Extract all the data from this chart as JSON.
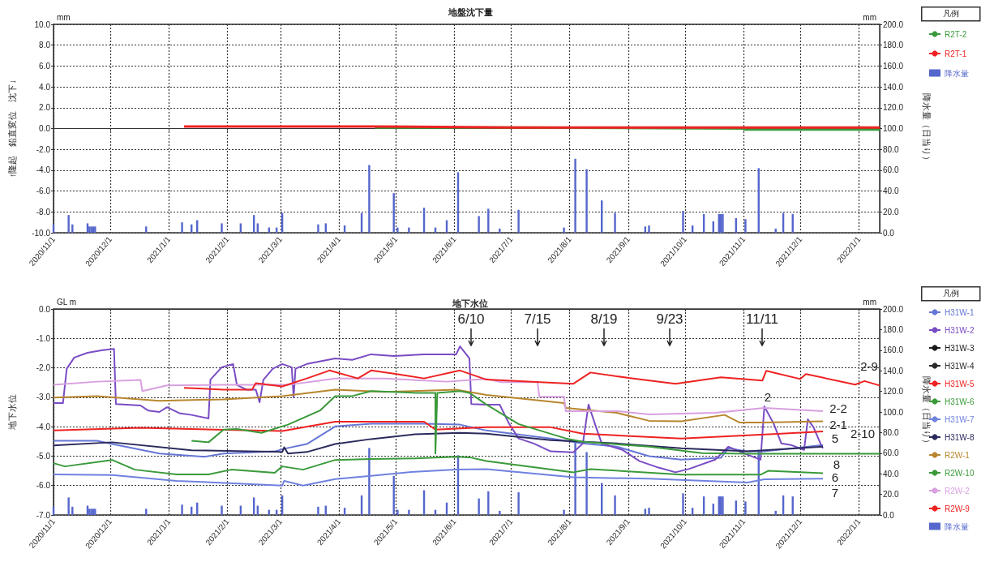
{
  "chart_data": [
    {
      "type": "line",
      "title": "地盤沈下量",
      "ylabel": "↑隆起　鉛直変位　沈下↓",
      "y2label": "降水量（日当り）",
      "legend_title": "凡例",
      "legend": "right",
      "grid": true,
      "annotations": [
        "mm",
        "mm"
      ],
      "xlim": [
        "2020-11-01",
        "2022-01-12"
      ],
      "xticks": [
        {
          "value": "2020-11-01",
          "label": "2020/11/1"
        },
        {
          "value": "2020-12-01",
          "label": "2020/12/1"
        },
        {
          "value": "2021-01-01",
          "label": "2021/1/1"
        },
        {
          "value": "2021-02-01",
          "label": "2021/2/1"
        },
        {
          "value": "2021-03-01",
          "label": "2021/3/1"
        },
        {
          "value": "2021-04-01",
          "label": "2021/4/1"
        },
        {
          "value": "2021-05-01",
          "label": "2021/5/1"
        },
        {
          "value": "2021-06-01",
          "label": "2021/6/1"
        },
        {
          "value": "2021-07-01",
          "label": "2021/7/1"
        },
        {
          "value": "2021-08-01",
          "label": "2021/8/1"
        },
        {
          "value": "2021-09-01",
          "label": "2021/9/1"
        },
        {
          "value": "2021-10-01",
          "label": "2021/10/1"
        },
        {
          "value": "2021-11-01",
          "label": "2021/11/1"
        },
        {
          "value": "2021-12-01",
          "label": "2021/12/1"
        },
        {
          "value": "2022-01-01",
          "label": "2022/1/1"
        }
      ],
      "ylim": [
        -10,
        10
      ],
      "yticks": [
        {
          "value": -10,
          "label": "-10.0"
        },
        {
          "value": -8,
          "label": "-8.0"
        },
        {
          "value": -6,
          "label": "-6.0"
        },
        {
          "value": -4,
          "label": "-4.0"
        },
        {
          "value": -2,
          "label": "-2.0"
        },
        {
          "value": 0,
          "label": "0.0"
        },
        {
          "value": 2,
          "label": "2.0"
        },
        {
          "value": 4,
          "label": "4.0"
        },
        {
          "value": 6,
          "label": "6.0"
        },
        {
          "value": 8,
          "label": "8.0"
        },
        {
          "value": 10,
          "label": "10.0"
        }
      ],
      "y2lim": [
        0,
        200
      ],
      "y2ticks": [
        {
          "value": 0,
          "label": "0.0"
        },
        {
          "value": 20,
          "label": "20.0"
        },
        {
          "value": 40,
          "label": "40.0"
        },
        {
          "value": 60,
          "label": "60.0"
        },
        {
          "value": 80,
          "label": "80.0"
        },
        {
          "value": 100,
          "label": "100.0"
        },
        {
          "value": 120,
          "label": "120.0"
        },
        {
          "value": 140,
          "label": "140.0"
        },
        {
          "value": 160,
          "label": "160.0"
        },
        {
          "value": 180,
          "label": "180.0"
        },
        {
          "value": 200,
          "label": "200.0"
        }
      ],
      "series": [
        {
          "name": "R2T-2",
          "color": "#3a9a3a",
          "x": [
            "2021-04-20",
            "2021-07-01",
            "2021-11-01",
            "2021-11-02",
            "2022-01-12"
          ],
          "values": [
            0.1,
            0.1,
            0.0,
            -0.1,
            -0.1
          ]
        },
        {
          "name": "R2T-1",
          "color": "#ee2222",
          "x": [
            "2021-01-09",
            "2021-04-20",
            "2021-07-01",
            "2021-10-01",
            "2022-01-12"
          ],
          "values": [
            0.2,
            0.2,
            0.1,
            0.1,
            0.1
          ]
        },
        {
          "name": "降水量",
          "type": "bar",
          "axis": "y2",
          "color": "#5566cc",
          "x": [
            "2020-11-01",
            "2020-11-09",
            "2020-11-11",
            "2020-11-19",
            "2020-11-20",
            "2020-11-21",
            "2020-11-22",
            "2020-11-23",
            "2020-12-20",
            "2021-01-08",
            "2021-01-13",
            "2021-01-16",
            "2021-01-29",
            "2021-02-08",
            "2021-02-15",
            "2021-02-17",
            "2021-02-23",
            "2021-02-27",
            "2021-03-02",
            "2021-03-21",
            "2021-03-25",
            "2021-04-04",
            "2021-04-13",
            "2021-04-17",
            "2021-04-30",
            "2021-05-02",
            "2021-05-08",
            "2021-05-16",
            "2021-05-22",
            "2021-05-28",
            "2021-06-03",
            "2021-06-14",
            "2021-06-19",
            "2021-06-25",
            "2021-07-05",
            "2021-07-29",
            "2021-08-04",
            "2021-08-10",
            "2021-08-18",
            "2021-08-25",
            "2021-09-10",
            "2021-09-12",
            "2021-09-30",
            "2021-10-05",
            "2021-10-11",
            "2021-10-16",
            "2021-10-19",
            "2021-10-20",
            "2021-10-21",
            "2021-10-28",
            "2021-11-02",
            "2021-11-09",
            "2021-11-18",
            "2021-11-22",
            "2021-11-27"
          ],
          "values": [
            8,
            17,
            8,
            9,
            6,
            6,
            6,
            6,
            6,
            10,
            8,
            12,
            9,
            9,
            17,
            9,
            5,
            5,
            19,
            8,
            9,
            7,
            19,
            65,
            38,
            5,
            5,
            24,
            5,
            12,
            58,
            16,
            23,
            4,
            22,
            5,
            71,
            61,
            31,
            19,
            6,
            7,
            21,
            7,
            18,
            11,
            18,
            18,
            18,
            14,
            13,
            62,
            4,
            19,
            18
          ]
        }
      ]
    },
    {
      "type": "line",
      "title": "地下水位",
      "ylabel": "地下水位",
      "y2label": "降水量（日当り）",
      "legend_title": "凡例",
      "legend": "right",
      "grid": true,
      "annotations": [
        "GL m",
        "mm",
        "6/10",
        "7/15",
        "8/19",
        "9/23",
        "11/11",
        "2-9",
        "2",
        "2-2",
        "2-1",
        "5",
        "2-10",
        "8",
        "6",
        "7"
      ],
      "xlim": [
        "2020-11-01",
        "2022-01-12"
      ],
      "xticks": [
        {
          "value": "2020-11-01",
          "label": "2020/11/1"
        },
        {
          "value": "2020-12-01",
          "label": "2020/12/1"
        },
        {
          "value": "2021-01-01",
          "label": "2021/1/1"
        },
        {
          "value": "2021-02-01",
          "label": "2021/2/1"
        },
        {
          "value": "2021-03-01",
          "label": "2021/3/1"
        },
        {
          "value": "2021-04-01",
          "label": "2021/4/1"
        },
        {
          "value": "2021-05-01",
          "label": "2021/5/1"
        },
        {
          "value": "2021-06-01",
          "label": "2021/6/1"
        },
        {
          "value": "2021-07-01",
          "label": "2021/7/1"
        },
        {
          "value": "2021-08-01",
          "label": "2021/8/1"
        },
        {
          "value": "2021-09-01",
          "label": "2021/9/1"
        },
        {
          "value": "2021-10-01",
          "label": "2021/10/1"
        },
        {
          "value": "2021-11-01",
          "label": "2021/11/1"
        },
        {
          "value": "2021-12-01",
          "label": "2021/12/1"
        },
        {
          "value": "2022-01-01",
          "label": "2022/1/1"
        }
      ],
      "ylim": [
        -7,
        0
      ],
      "yticks": [
        {
          "value": -7,
          "label": "-7.0"
        },
        {
          "value": -6,
          "label": "-6.0"
        },
        {
          "value": -5,
          "label": "-5.0"
        },
        {
          "value": -4,
          "label": "-4.0"
        },
        {
          "value": -3,
          "label": "-3.0"
        },
        {
          "value": -2,
          "label": "-2.0"
        },
        {
          "value": -1,
          "label": "-1.0"
        },
        {
          "value": 0,
          "label": "0.0"
        }
      ],
      "y2lim": [
        0,
        200
      ],
      "y2ticks": [
        {
          "value": 0,
          "label": "0.0"
        },
        {
          "value": 20,
          "label": "20.0"
        },
        {
          "value": 40,
          "label": "40.0"
        },
        {
          "value": 60,
          "label": "60.0"
        },
        {
          "value": 80,
          "label": "80.0"
        },
        {
          "value": 100,
          "label": "100.0"
        },
        {
          "value": 120,
          "label": "120.0"
        },
        {
          "value": 140,
          "label": "140.0"
        },
        {
          "value": 160,
          "label": "160.0"
        },
        {
          "value": 180,
          "label": "180.0"
        },
        {
          "value": 200,
          "label": "200.0"
        }
      ],
      "series": [
        {
          "name": "H31W-1",
          "color": "#6677d6",
          "x": [
            "2020-11-01",
            "2020-11-24",
            "2020-12-02",
            "2020-12-27",
            "2021-01-20",
            "2021-01-30",
            "2021-02-26",
            "2021-03-03",
            "2021-03-15",
            "2021-03-30",
            "2021-04-18",
            "2021-05-16",
            "2021-06-04",
            "2021-06-18",
            "2021-07-22",
            "2021-08-08",
            "2021-08-26",
            "2021-09-12",
            "2021-09-29",
            "2021-10-20",
            "2021-10-24",
            "2021-11-03",
            "2021-11-12",
            "2021-12-13"
          ],
          "values": [
            -4.48,
            -4.48,
            -4.59,
            -4.91,
            -5.02,
            -4.91,
            -4.84,
            -4.75,
            -4.59,
            -3.99,
            -3.9,
            -3.9,
            -3.93,
            -4.13,
            -4.4,
            -4.57,
            -4.68,
            -5.0,
            -5.12,
            -5.06,
            -4.73,
            -4.84,
            -4.84,
            -4.62
          ]
        },
        {
          "name": "H31W-2",
          "color": "#7a4cc4",
          "x": [
            "2020-11-01",
            "2020-11-06",
            "2020-11-08",
            "2020-11-12",
            "2020-11-19",
            "2020-11-27",
            "2020-12-03",
            "2020-12-04",
            "2020-12-17",
            "2020-12-21",
            "2020-12-27",
            "2020-12-31",
            "2021-01-07",
            "2021-01-13",
            "2021-01-22",
            "2021-01-23",
            "2021-01-29",
            "2021-02-04",
            "2021-02-06",
            "2021-02-11",
            "2021-02-16",
            "2021-02-18",
            "2021-02-20",
            "2021-02-25",
            "2021-03-02",
            "2021-03-07",
            "2021-03-08",
            "2021-03-09",
            "2021-03-15",
            "2021-03-30",
            "2021-04-08",
            "2021-04-18",
            "2021-04-30",
            "2021-05-16",
            "2021-06-02",
            "2021-06-04",
            "2021-06-09",
            "2021-06-10",
            "2021-06-18",
            "2021-06-25",
            "2021-06-30",
            "2021-07-05",
            "2021-07-13",
            "2021-07-22",
            "2021-08-03",
            "2021-08-08",
            "2021-08-11",
            "2021-08-15",
            "2021-08-18",
            "2021-08-29",
            "2021-09-07",
            "2021-09-17",
            "2021-09-26",
            "2021-10-03",
            "2021-10-17",
            "2021-10-24",
            "2021-11-03",
            "2021-11-10",
            "2021-11-12",
            "2021-11-17",
            "2021-11-21",
            "2021-11-26",
            "2021-12-03",
            "2021-12-05",
            "2021-12-08",
            "2021-12-12",
            "2021-12-13"
          ],
          "values": [
            -3.2,
            -3.2,
            -2.03,
            -1.65,
            -1.49,
            -1.4,
            -1.36,
            -3.23,
            -3.28,
            -3.45,
            -3.5,
            -3.34,
            -3.55,
            -3.6,
            -3.72,
            -2.4,
            -1.98,
            -1.87,
            -2.58,
            -2.74,
            -2.74,
            -3.17,
            -2.41,
            -2.03,
            -1.87,
            -1.98,
            -3.0,
            -2.03,
            -1.87,
            -1.68,
            -1.73,
            -1.54,
            -1.6,
            -1.54,
            -1.54,
            -1.27,
            -1.68,
            -3.23,
            -3.25,
            -3.25,
            -3.9,
            -4.4,
            -4.57,
            -4.84,
            -4.87,
            -4.57,
            -3.25,
            -4.02,
            -4.57,
            -4.79,
            -5.17,
            -5.39,
            -5.55,
            -5.44,
            -5.12,
            -4.68,
            -4.95,
            -5.12,
            -3.31,
            -3.91,
            -4.57,
            -4.62,
            -4.79,
            -3.75,
            -4.02,
            -4.62,
            -4.73
          ]
        },
        {
          "name": "H31W-3",
          "color": "#1a1a1a"
        },
        {
          "name": "H31W-4",
          "color": "#2a2a2a"
        },
        {
          "name": "H31W-5",
          "color": "#ee2222",
          "x": [
            "2020-11-01",
            "2020-12-17",
            "2021-03-02",
            "2021-03-30",
            "2021-04-18",
            "2021-05-16",
            "2021-05-22",
            "2021-06-18",
            "2021-07-22",
            "2021-08-08",
            "2021-09-29",
            "2021-11-21",
            "2021-12-13"
          ],
          "values": [
            -4.13,
            -4.04,
            -4.15,
            -3.83,
            -3.83,
            -3.83,
            -4.1,
            -4.02,
            -4.02,
            -4.24,
            -4.4,
            -4.24,
            -4.16
          ]
        },
        {
          "name": "H31W-6",
          "color": "#3a9a3a",
          "x": [
            "2020-11-01",
            "2020-11-07",
            "2020-12-02",
            "2020-12-14",
            "2021-01-05",
            "2021-01-22",
            "2021-02-03",
            "2021-02-26",
            "2021-03-02",
            "2021-03-13",
            "2021-03-30",
            "2021-04-18",
            "2021-05-11",
            "2021-06-02",
            "2021-06-09",
            "2021-06-18",
            "2021-08-03",
            "2021-08-12",
            "2021-09-29",
            "2021-11-10",
            "2021-11-14",
            "2021-12-13"
          ],
          "values": [
            -5.24,
            -5.35,
            -5.13,
            -5.46,
            -5.62,
            -5.62,
            -5.46,
            -5.57,
            -5.35,
            -5.46,
            -5.13,
            -5.1,
            -5.08,
            -5.02,
            -5.04,
            -5.17,
            -5.55,
            -5.44,
            -5.63,
            -5.63,
            -5.5,
            -5.58
          ]
        },
        {
          "name": "H31W-7",
          "color": "#6f82e0",
          "x": [
            "2020-11-01",
            "2020-12-02",
            "2021-01-05",
            "2021-03-02",
            "2021-03-03",
            "2021-03-13",
            "2021-03-30",
            "2021-04-18",
            "2021-05-11",
            "2021-06-02",
            "2021-06-18",
            "2021-08-03",
            "2021-09-12",
            "2021-11-03",
            "2021-11-12",
            "2021-12-13"
          ],
          "values": [
            -5.62,
            -5.64,
            -5.84,
            -6.0,
            -5.84,
            -6.0,
            -5.78,
            -5.67,
            -5.53,
            -5.46,
            -5.44,
            -5.72,
            -5.77,
            -5.9,
            -5.79,
            -5.77
          ]
        },
        {
          "name": "H31W-8",
          "color": "#2b2a5c",
          "x": [
            "2020-11-01",
            "2020-12-02",
            "2021-01-13",
            "2021-03-02",
            "2021-03-03",
            "2021-03-05",
            "2021-03-15",
            "2021-03-30",
            "2021-04-18",
            "2021-05-11",
            "2021-06-04",
            "2021-06-18",
            "2021-07-22",
            "2021-08-26",
            "2021-09-29",
            "2021-11-03",
            "2021-12-13"
          ],
          "values": [
            -4.64,
            -4.53,
            -4.8,
            -4.86,
            -4.7,
            -4.91,
            -4.86,
            -4.59,
            -4.42,
            -4.26,
            -4.21,
            -4.24,
            -4.46,
            -4.57,
            -4.73,
            -4.84,
            -4.68
          ]
        },
        {
          "name": "R2W-1",
          "color": "#b8862e",
          "x": [
            "2020-11-01",
            "2020-11-24",
            "2020-12-27",
            "2021-01-30",
            "2021-03-02",
            "2021-03-30",
            "2021-04-25",
            "2021-06-02",
            "2021-06-18",
            "2021-07-29",
            "2021-07-30",
            "2021-08-26",
            "2021-09-12",
            "2021-09-29",
            "2021-10-22",
            "2021-10-30",
            "2021-11-12",
            "2021-12-13"
          ],
          "values": [
            -3.01,
            -2.96,
            -3.12,
            -3.07,
            -2.96,
            -2.74,
            -2.82,
            -2.74,
            -2.92,
            -3.2,
            -3.36,
            -3.53,
            -3.8,
            -3.82,
            -3.6,
            -3.86,
            -3.86,
            -3.82
          ]
        },
        {
          "name": "R2W-10",
          "color": "#3a9a3a",
          "x": [
            "2021-01-13",
            "2021-01-22",
            "2021-01-30",
            "2021-02-06",
            "2021-02-19",
            "2021-03-05",
            "2021-03-22",
            "2021-03-30",
            "2021-04-08",
            "2021-04-18",
            "2021-05-11",
            "2021-05-22",
            "2021-05-22",
            "2021-05-23",
            "2021-06-04",
            "2021-06-09",
            "2021-06-18",
            "2021-07-05",
            "2021-07-30",
            "2021-08-08",
            "2021-09-12",
            "2021-10-10",
            "2021-11-03",
            "2022-01-12"
          ],
          "values": [
            -4.48,
            -4.53,
            -4.1,
            -4.08,
            -4.21,
            -3.93,
            -3.45,
            -2.96,
            -2.96,
            -2.79,
            -2.85,
            -2.85,
            -4.91,
            -2.85,
            -2.79,
            -2.85,
            -3.25,
            -3.91,
            -4.4,
            -4.51,
            -4.68,
            -4.9,
            -4.92,
            -4.92
          ]
        },
        {
          "name": "R2W-2",
          "color": "#d8a0e0",
          "x": [
            "2020-11-01",
            "2020-11-24",
            "2020-12-17",
            "2020-12-18",
            "2020-12-31",
            "2021-01-30",
            "2021-03-05",
            "2021-03-30",
            "2021-04-25",
            "2021-05-28",
            "2021-06-18",
            "2021-06-26",
            "2021-07-15",
            "2021-07-16",
            "2021-07-29",
            "2021-07-30",
            "2021-08-26",
            "2021-09-12",
            "2021-10-17",
            "2021-11-12",
            "2021-12-13"
          ],
          "values": [
            -2.58,
            -2.47,
            -2.41,
            -2.79,
            -2.6,
            -2.58,
            -2.58,
            -2.36,
            -2.36,
            -2.47,
            -2.38,
            -2.49,
            -2.49,
            -2.98,
            -2.98,
            -3.47,
            -3.47,
            -3.58,
            -3.53,
            -3.36,
            -3.47
          ]
        },
        {
          "name": "R2W-9",
          "color": "#ee2222",
          "x": [
            "2021-01-09",
            "2021-01-30",
            "2021-02-14",
            "2021-02-16",
            "2021-03-02",
            "2021-03-15",
            "2021-03-27",
            "2021-04-11",
            "2021-04-18",
            "2021-04-30",
            "2021-05-16",
            "2021-06-04",
            "2021-06-18",
            "2021-08-03",
            "2021-08-12",
            "2021-09-02",
            "2021-09-26",
            "2021-10-20",
            "2021-11-11",
            "2021-11-13",
            "2021-12-01",
            "2021-12-04",
            "2021-12-30",
            "2022-01-04",
            "2022-01-12"
          ],
          "values": [
            -2.68,
            -2.74,
            -2.74,
            -2.52,
            -2.63,
            -2.36,
            -2.09,
            -2.36,
            -2.09,
            -2.2,
            -2.36,
            -2.09,
            -2.4,
            -2.54,
            -2.16,
            -2.35,
            -2.54,
            -2.32,
            -2.43,
            -2.1,
            -2.38,
            -2.21,
            -2.57,
            -2.45,
            -2.6
          ]
        },
        {
          "name": "降水量",
          "type": "bar",
          "axis": "y2",
          "color": "#5566cc",
          "x": [
            "2020-11-01",
            "2020-11-09",
            "2020-11-11",
            "2020-11-19",
            "2020-11-20",
            "2020-11-21",
            "2020-11-22",
            "2020-11-23",
            "2020-12-20",
            "2021-01-08",
            "2021-01-13",
            "2021-01-16",
            "2021-01-29",
            "2021-02-08",
            "2021-02-15",
            "2021-02-17",
            "2021-02-23",
            "2021-02-27",
            "2021-03-02",
            "2021-03-21",
            "2021-03-25",
            "2021-04-04",
            "2021-04-13",
            "2021-04-17",
            "2021-04-30",
            "2021-05-02",
            "2021-05-08",
            "2021-05-16",
            "2021-05-22",
            "2021-05-28",
            "2021-06-03",
            "2021-06-14",
            "2021-06-19",
            "2021-06-25",
            "2021-07-05",
            "2021-07-29",
            "2021-08-04",
            "2021-08-10",
            "2021-08-18",
            "2021-08-25",
            "2021-09-10",
            "2021-09-12",
            "2021-09-30",
            "2021-10-05",
            "2021-10-11",
            "2021-10-16",
            "2021-10-19",
            "2021-10-20",
            "2021-10-21",
            "2021-10-28",
            "2021-11-02",
            "2021-11-09",
            "2021-11-18",
            "2021-11-22",
            "2021-11-27"
          ],
          "values": [
            8,
            17,
            8,
            9,
            6,
            6,
            6,
            6,
            6,
            10,
            8,
            12,
            9,
            9,
            17,
            9,
            5,
            5,
            19,
            8,
            9,
            7,
            19,
            65,
            38,
            5,
            5,
            24,
            5,
            12,
            58,
            16,
            23,
            4,
            22,
            5,
            71,
            61,
            31,
            19,
            6,
            7,
            21,
            7,
            18,
            11,
            18,
            18,
            18,
            14,
            13,
            62,
            4,
            19,
            18
          ]
        }
      ]
    }
  ]
}
